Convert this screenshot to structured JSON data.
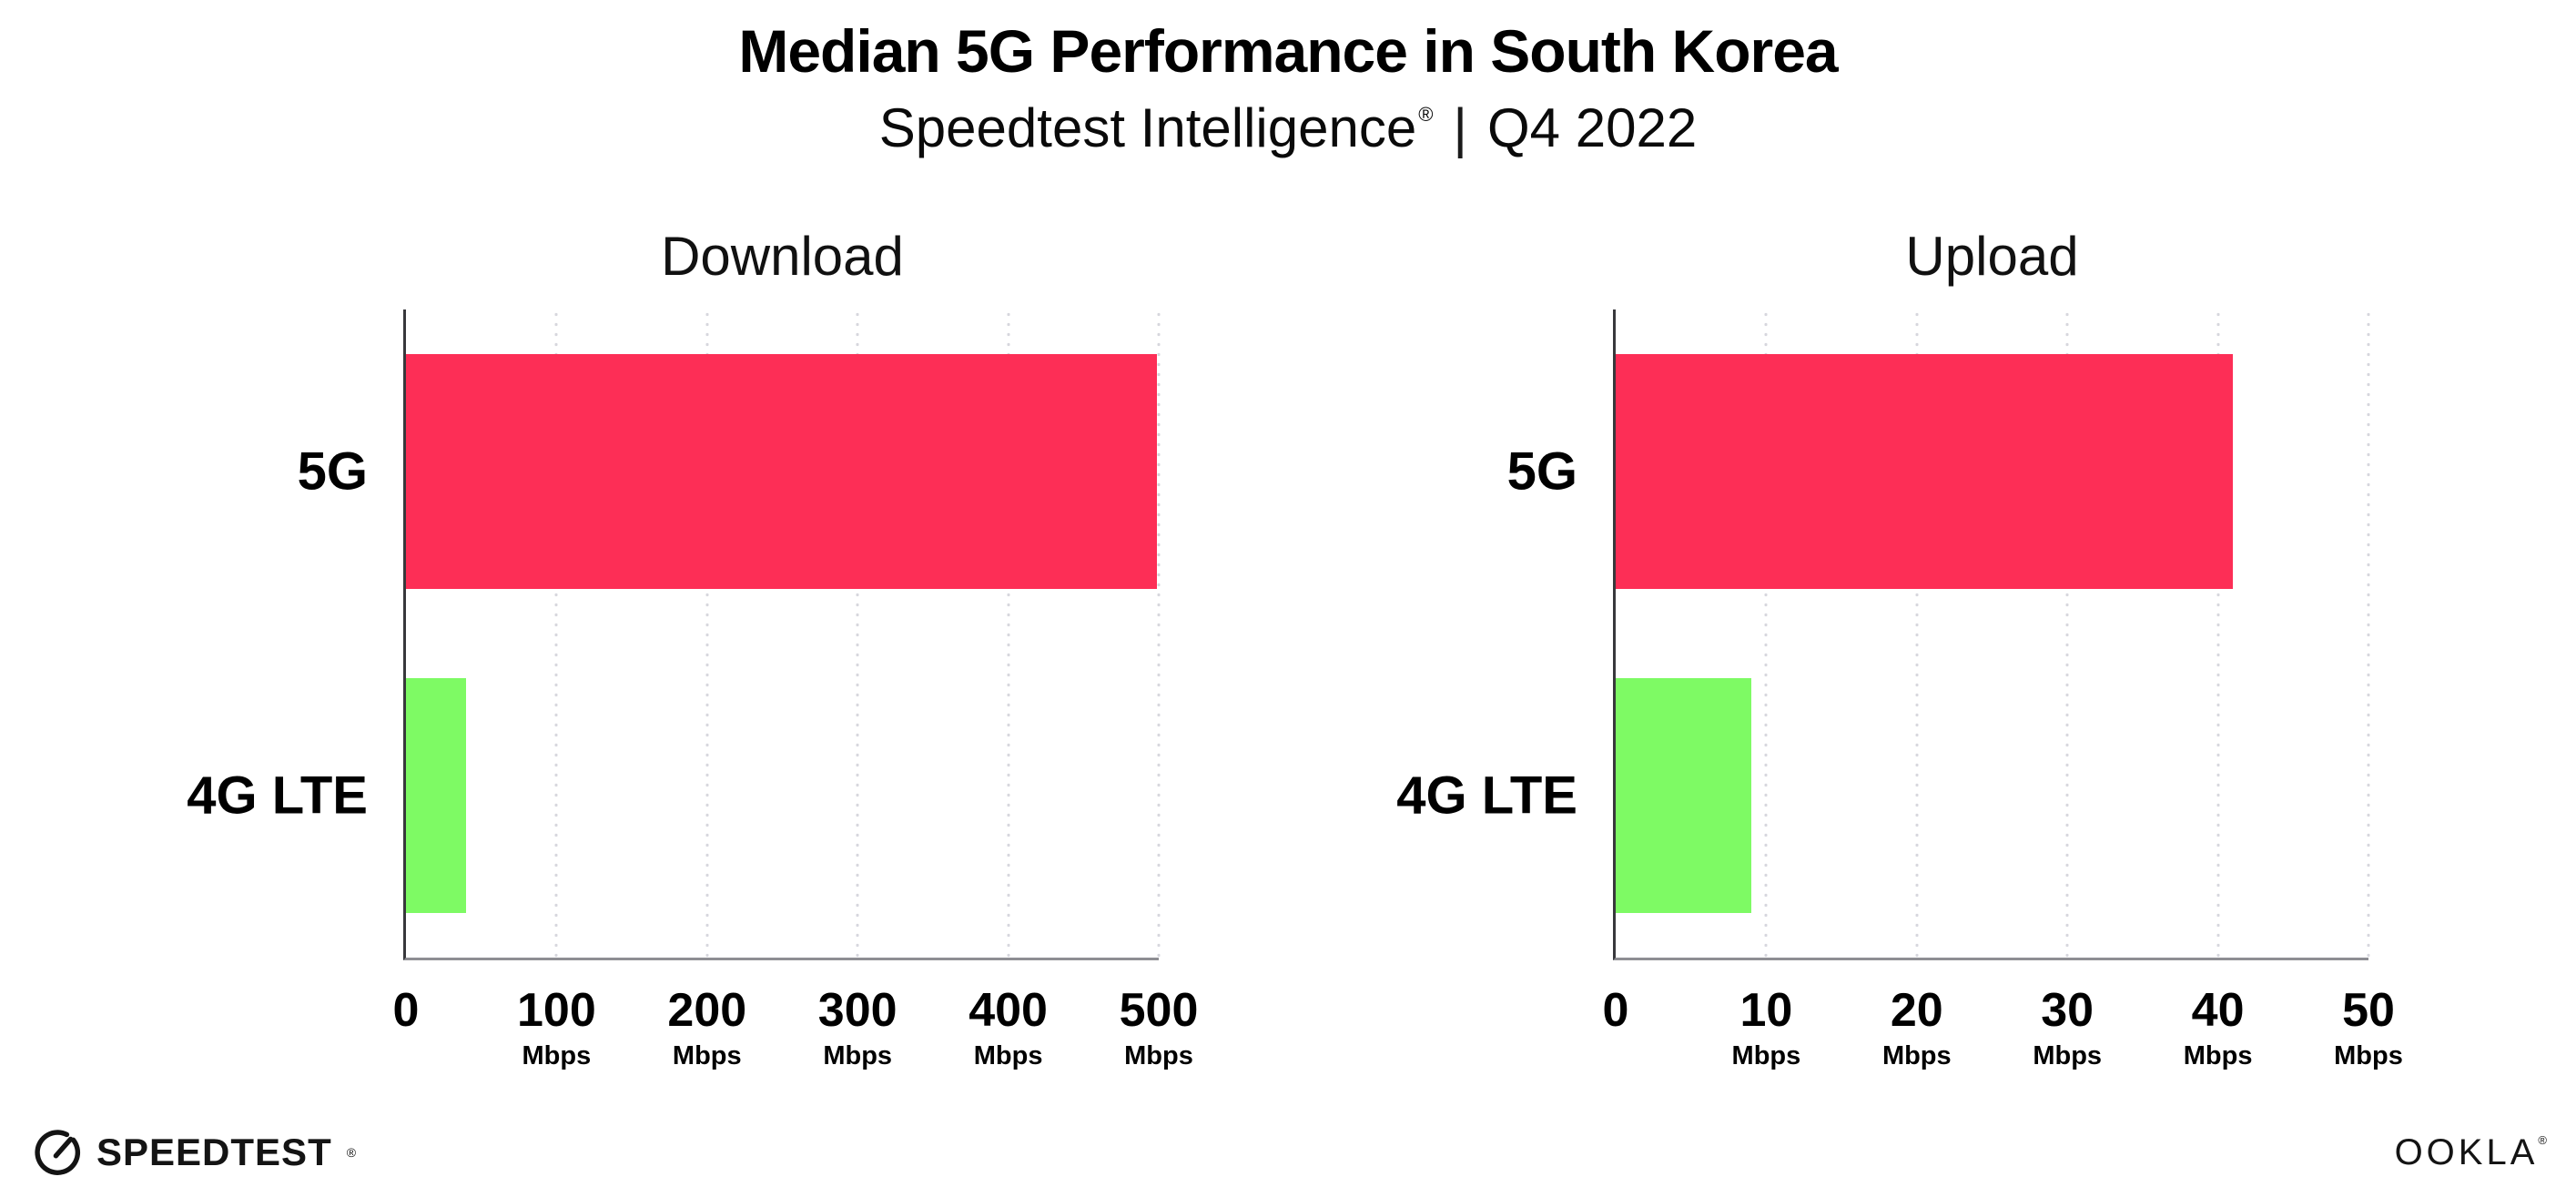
{
  "header": {
    "title": "Median 5G Performance in South Korea",
    "subtitle": {
      "brand": "Speedtest Intelligence",
      "reg_mark": "®",
      "separator": "|",
      "period": "Q4 2022"
    }
  },
  "chart_data": [
    {
      "type": "bar",
      "orientation": "horizontal",
      "title": "Download",
      "categories": [
        "5G",
        "4G LTE"
      ],
      "values": [
        499,
        40
      ],
      "unit": "Mbps",
      "xlim": [
        0,
        500
      ],
      "xticks": [
        0,
        100,
        200,
        300,
        400,
        500
      ],
      "bar_colors": [
        "#fd2e56",
        "#7efa64"
      ],
      "grid": "dotted-vertical",
      "legend": "none"
    },
    {
      "type": "bar",
      "orientation": "horizontal",
      "title": "Upload",
      "categories": [
        "5G",
        "4G LTE"
      ],
      "values": [
        41,
        9
      ],
      "unit": "Mbps",
      "xlim": [
        0,
        50
      ],
      "xticks": [
        0,
        10,
        20,
        30,
        40,
        50
      ],
      "bar_colors": [
        "#fd2e56",
        "#7efa64"
      ],
      "grid": "dotted-vertical",
      "legend": "none"
    }
  ],
  "footer": {
    "speedtest_label": "SPEEDTEST",
    "speedtest_reg": "®",
    "ookla_label": "OOKLA",
    "ookla_reg": "®"
  },
  "colors": {
    "bar_5g": "#fd2e56",
    "bar_4g_lte": "#7efa64",
    "axis_x": "#8e8e93",
    "axis_y": "#38383c",
    "gridline_dot": "#d7d7de",
    "text": "#000000"
  }
}
